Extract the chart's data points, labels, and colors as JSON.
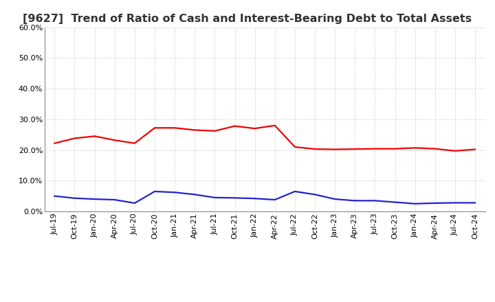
{
  "title": "[9627]  Trend of Ratio of Cash and Interest-Bearing Debt to Total Assets",
  "x_labels": [
    "Jul-19",
    "Oct-19",
    "Jan-20",
    "Apr-20",
    "Jul-20",
    "Oct-20",
    "Jan-21",
    "Apr-21",
    "Jul-21",
    "Oct-21",
    "Jan-22",
    "Apr-22",
    "Jul-22",
    "Oct-22",
    "Jan-23",
    "Apr-23",
    "Jul-23",
    "Oct-23",
    "Jan-24",
    "Apr-24",
    "Jul-24",
    "Oct-24"
  ],
  "cash": [
    0.222,
    0.238,
    0.245,
    0.232,
    0.222,
    0.272,
    0.272,
    0.265,
    0.262,
    0.278,
    0.27,
    0.28,
    0.21,
    0.203,
    0.202,
    0.203,
    0.204,
    0.204,
    0.207,
    0.204,
    0.197,
    0.202
  ],
  "interest_bearing_debt": [
    0.05,
    0.043,
    0.04,
    0.038,
    0.027,
    0.065,
    0.062,
    0.055,
    0.045,
    0.044,
    0.042,
    0.038,
    0.065,
    0.055,
    0.04,
    0.035,
    0.035,
    0.03,
    0.025,
    0.027,
    0.028,
    0.028
  ],
  "cash_color": "#EE0000",
  "debt_color": "#2222CC",
  "background_color": "#FFFFFF",
  "plot_bg_color": "#FFFFFF",
  "grid_color": "#BBBBBB",
  "ylim": [
    0.0,
    0.6
  ],
  "yticks": [
    0.0,
    0.1,
    0.2,
    0.3,
    0.4,
    0.5,
    0.6
  ],
  "title_fontsize": 11.5,
  "tick_fontsize": 8,
  "legend_fontsize": 9.5,
  "line_width": 1.6
}
